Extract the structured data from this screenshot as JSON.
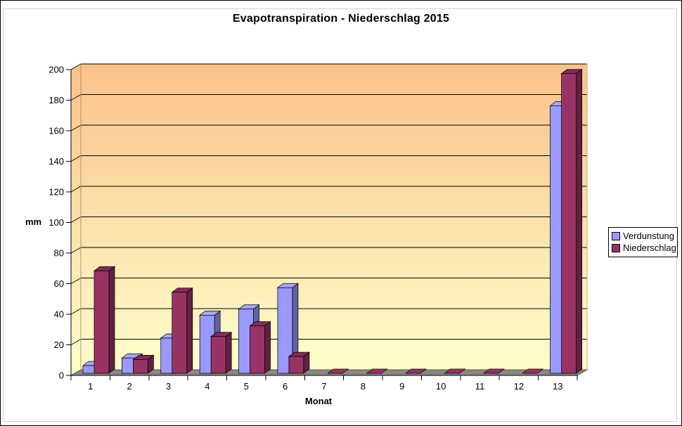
{
  "window": {
    "background": "#FFFFFF",
    "frame_border_color": "#CFCFCF"
  },
  "chart_data": {
    "type": "bar",
    "style": "3d-clustered-column",
    "title": "Evapotranspiration - Niederschlag 2015",
    "xlabel": "Monat",
    "ylabel": "mm",
    "categories": [
      "1",
      "2",
      "3",
      "4",
      "5",
      "6",
      "7",
      "8",
      "9",
      "10",
      "11",
      "12",
      "13"
    ],
    "series": [
      {
        "name": "Verdunstung",
        "color": "#9999FF",
        "values": [
          5,
          10,
          23,
          38,
          42,
          56,
          0,
          0,
          0,
          0,
          0,
          0,
          175
        ]
      },
      {
        "name": "Niederschlag",
        "color": "#993366",
        "values": [
          67,
          9,
          53,
          24,
          31,
          11,
          0,
          0,
          0,
          0,
          0,
          0,
          196
        ]
      }
    ],
    "ylim": [
      0,
      200
    ],
    "ytick_step": 20,
    "grid": "horizontal",
    "legend_position": "right",
    "wall_gradient_top": "#FBC28A",
    "wall_gradient_bottom": "#FFFFCC",
    "floor_color": "#8A8884",
    "axis_color": "#000000"
  }
}
